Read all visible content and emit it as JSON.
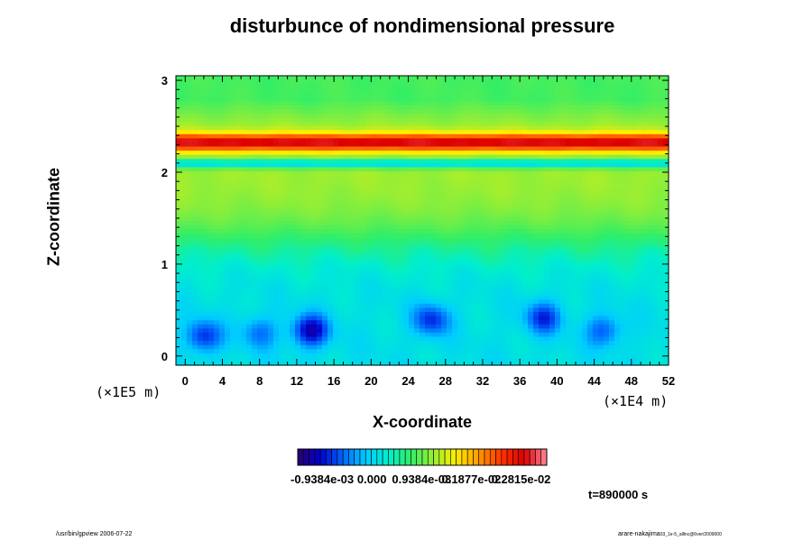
{
  "title": "disturbunce of nondimensional pressure",
  "x_axis_label": "X-coordinate",
  "y_axis_label": "Z-coordinate",
  "x_scale_note": "(×1E4 m)",
  "y_scale_note": "(×1E5 m)",
  "colorbar_labels": [
    "-0.9384e-03",
    "0.000",
    "0.9384e-03",
    "0.1877e-02",
    "0.2815e-02"
  ],
  "time_label": "t=890000 s",
  "footer_left": "/usr/bin/gpview 2006-07-22",
  "footer_right": "arare-nakajima",
  "footer_right_small": "03_1e-5_alllnc@6ver/2009000",
  "chart_data": {
    "type": "heatmap",
    "title": "disturbunce of nondimensional pressure",
    "xlabel": "X-coordinate",
    "ylabel": "Z-coordinate",
    "xlim": [
      -1,
      52
    ],
    "ylim": [
      -0.1,
      3.05
    ],
    "x_ticks": [
      0,
      4,
      8,
      12,
      16,
      20,
      24,
      28,
      32,
      36,
      40,
      44,
      48,
      52
    ],
    "y_ticks": [
      0,
      1,
      2,
      3
    ],
    "color_scale": {
      "min": -0.0014,
      "max": 0.0033,
      "labeled_levels": [
        -0.0009384,
        0.0,
        0.0009384,
        0.001877,
        0.002815
      ],
      "colors": [
        "#2a0070",
        "#0000cc",
        "#0066ff",
        "#00ccff",
        "#00eecc",
        "#33ee66",
        "#99ee33",
        "#ffee00",
        "#ff9900",
        "#ff3300",
        "#dd0000",
        "#ff8899"
      ]
    },
    "features": {
      "band_peak": {
        "z": 2.33,
        "value": 0.003
      },
      "band_mid": {
        "z": 2.18,
        "value": 0.0009
      },
      "dip": {
        "z": 2.1,
        "value": 0.0001
      },
      "upper_green": {
        "z": 1.8,
        "value": 0.0012
      },
      "lower_cyan": {
        "z": 0.8,
        "value": 0.0001
      },
      "blue_spots": [
        {
          "x": 2,
          "z": 0.22,
          "value": -0.0009
        },
        {
          "x": 8,
          "z": 0.26,
          "value": -0.0006
        },
        {
          "x": 13.5,
          "z": 0.28,
          "value": -0.0012
        },
        {
          "x": 26.5,
          "z": 0.4,
          "value": -0.0009
        },
        {
          "x": 38.5,
          "z": 0.42,
          "value": -0.0009
        },
        {
          "x": 45,
          "z": 0.28,
          "value": -0.0007
        }
      ]
    }
  }
}
